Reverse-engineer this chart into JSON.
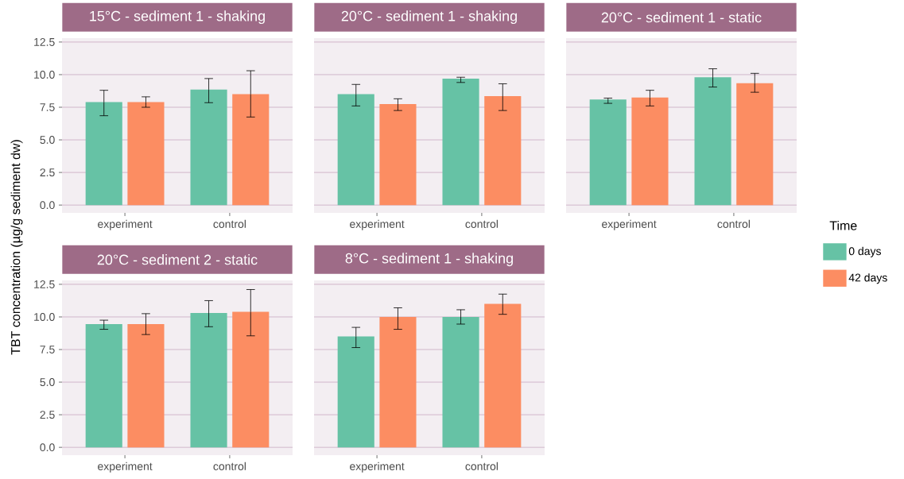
{
  "chart_data": [
    {
      "type": "bar",
      "title": "15°C - sediment 1 - shaking",
      "categories": [
        "experiment",
        "control"
      ],
      "ylim": [
        -0.6,
        12.8
      ],
      "yticks": [
        {
          "value": 0,
          "label": "0.0"
        },
        2.5,
        {
          "value": 5,
          "label": "5.0"
        },
        7.5,
        {
          "value": 10,
          "label": "10.0"
        },
        12.5
      ],
      "grid": "y",
      "legend": false,
      "series": [
        {
          "color": "#66c2a5",
          "values": [
            7.9,
            8.85
          ],
          "errors": [
            [
              6.85,
              8.8
            ],
            [
              7.85,
              9.7
            ]
          ]
        },
        {
          "color": "#fc8d62",
          "values": [
            7.9,
            8.5
          ],
          "errors": [
            [
              7.5,
              8.3
            ],
            [
              6.75,
              10.3
            ]
          ]
        }
      ]
    },
    {
      "type": "bar",
      "title": "20°C - sediment 1 - shaking",
      "categories": [
        "experiment",
        "control"
      ],
      "ylim": [
        -0.6,
        12.8
      ],
      "yticks": [
        0,
        2.5,
        5,
        7.5,
        10,
        12.5
      ],
      "grid": "y",
      "tick_labels": "x",
      "legend": false,
      "series": [
        {
          "color": "#66c2a5",
          "values": [
            8.5,
            9.7
          ],
          "errors": [
            [
              7.6,
              9.25
            ],
            [
              9.4,
              9.8
            ]
          ]
        },
        {
          "color": "#fc8d62",
          "values": [
            7.75,
            8.35
          ],
          "errors": [
            [
              7.25,
              8.15
            ],
            [
              7.25,
              9.3
            ]
          ]
        }
      ]
    },
    {
      "type": "bar",
      "title": "20°C - sediment 1 - static",
      "legend_title": "Time",
      "categories": [
        "experiment",
        "control"
      ],
      "ylim": [
        -0.6,
        12.8
      ],
      "yticks": [
        0,
        2.5,
        5,
        7.5,
        10,
        12.5
      ],
      "grid": "y",
      "tick_labels": "x",
      "legend": "right",
      "series": [
        {
          "name": "0 days",
          "color": "#66c2a5",
          "values": [
            8.1,
            9.8
          ],
          "errors": [
            [
              7.8,
              8.2
            ],
            [
              9.05,
              10.45
            ]
          ]
        },
        {
          "name": "42 days",
          "color": "#fc8d62",
          "values": [
            8.25,
            9.35
          ],
          "errors": [
            [
              7.6,
              8.8
            ],
            [
              8.65,
              10.1
            ]
          ]
        }
      ]
    },
    {
      "type": "bar",
      "title": "20°C - sediment 2 - static",
      "ylabel": "TBT concentration (µg/g sediment dw)",
      "categories": [
        "experiment",
        "control"
      ],
      "ylim": [
        -0.6,
        12.8
      ],
      "yticks": [
        {
          "value": 0,
          "label": "0.0"
        },
        2.5,
        {
          "value": 5,
          "label": "5.0"
        },
        7.5,
        {
          "value": 10,
          "label": "10.0"
        },
        12.5
      ],
      "grid": "y",
      "legend": false,
      "series": [
        {
          "color": "#66c2a5",
          "values": [
            9.45,
            10.3
          ],
          "errors": [
            [
              9.05,
              9.75
            ],
            [
              9.25,
              11.25
            ]
          ]
        },
        {
          "color": "#fc8d62",
          "values": [
            9.45,
            10.4
          ],
          "errors": [
            [
              8.65,
              10.25
            ],
            [
              8.55,
              12.1
            ]
          ]
        }
      ]
    },
    {
      "type": "bar",
      "title": "8°C - sediment 1 - shaking",
      "categories": [
        "experiment",
        "control"
      ],
      "ylim": [
        -0.6,
        12.8
      ],
      "yticks": [
        0,
        2.5,
        5,
        7.5,
        10,
        12.5
      ],
      "grid": "y",
      "tick_labels": "x",
      "legend": false,
      "series": [
        {
          "color": "#66c2a5",
          "values": [
            8.5,
            10.0
          ],
          "errors": [
            [
              7.65,
              9.2
            ],
            [
              9.45,
              10.55
            ]
          ]
        },
        {
          "color": "#fc8d62",
          "values": [
            10.0,
            11.0
          ],
          "errors": [
            [
              9.05,
              10.7
            ],
            [
              10.2,
              11.75
            ]
          ]
        }
      ]
    }
  ]
}
